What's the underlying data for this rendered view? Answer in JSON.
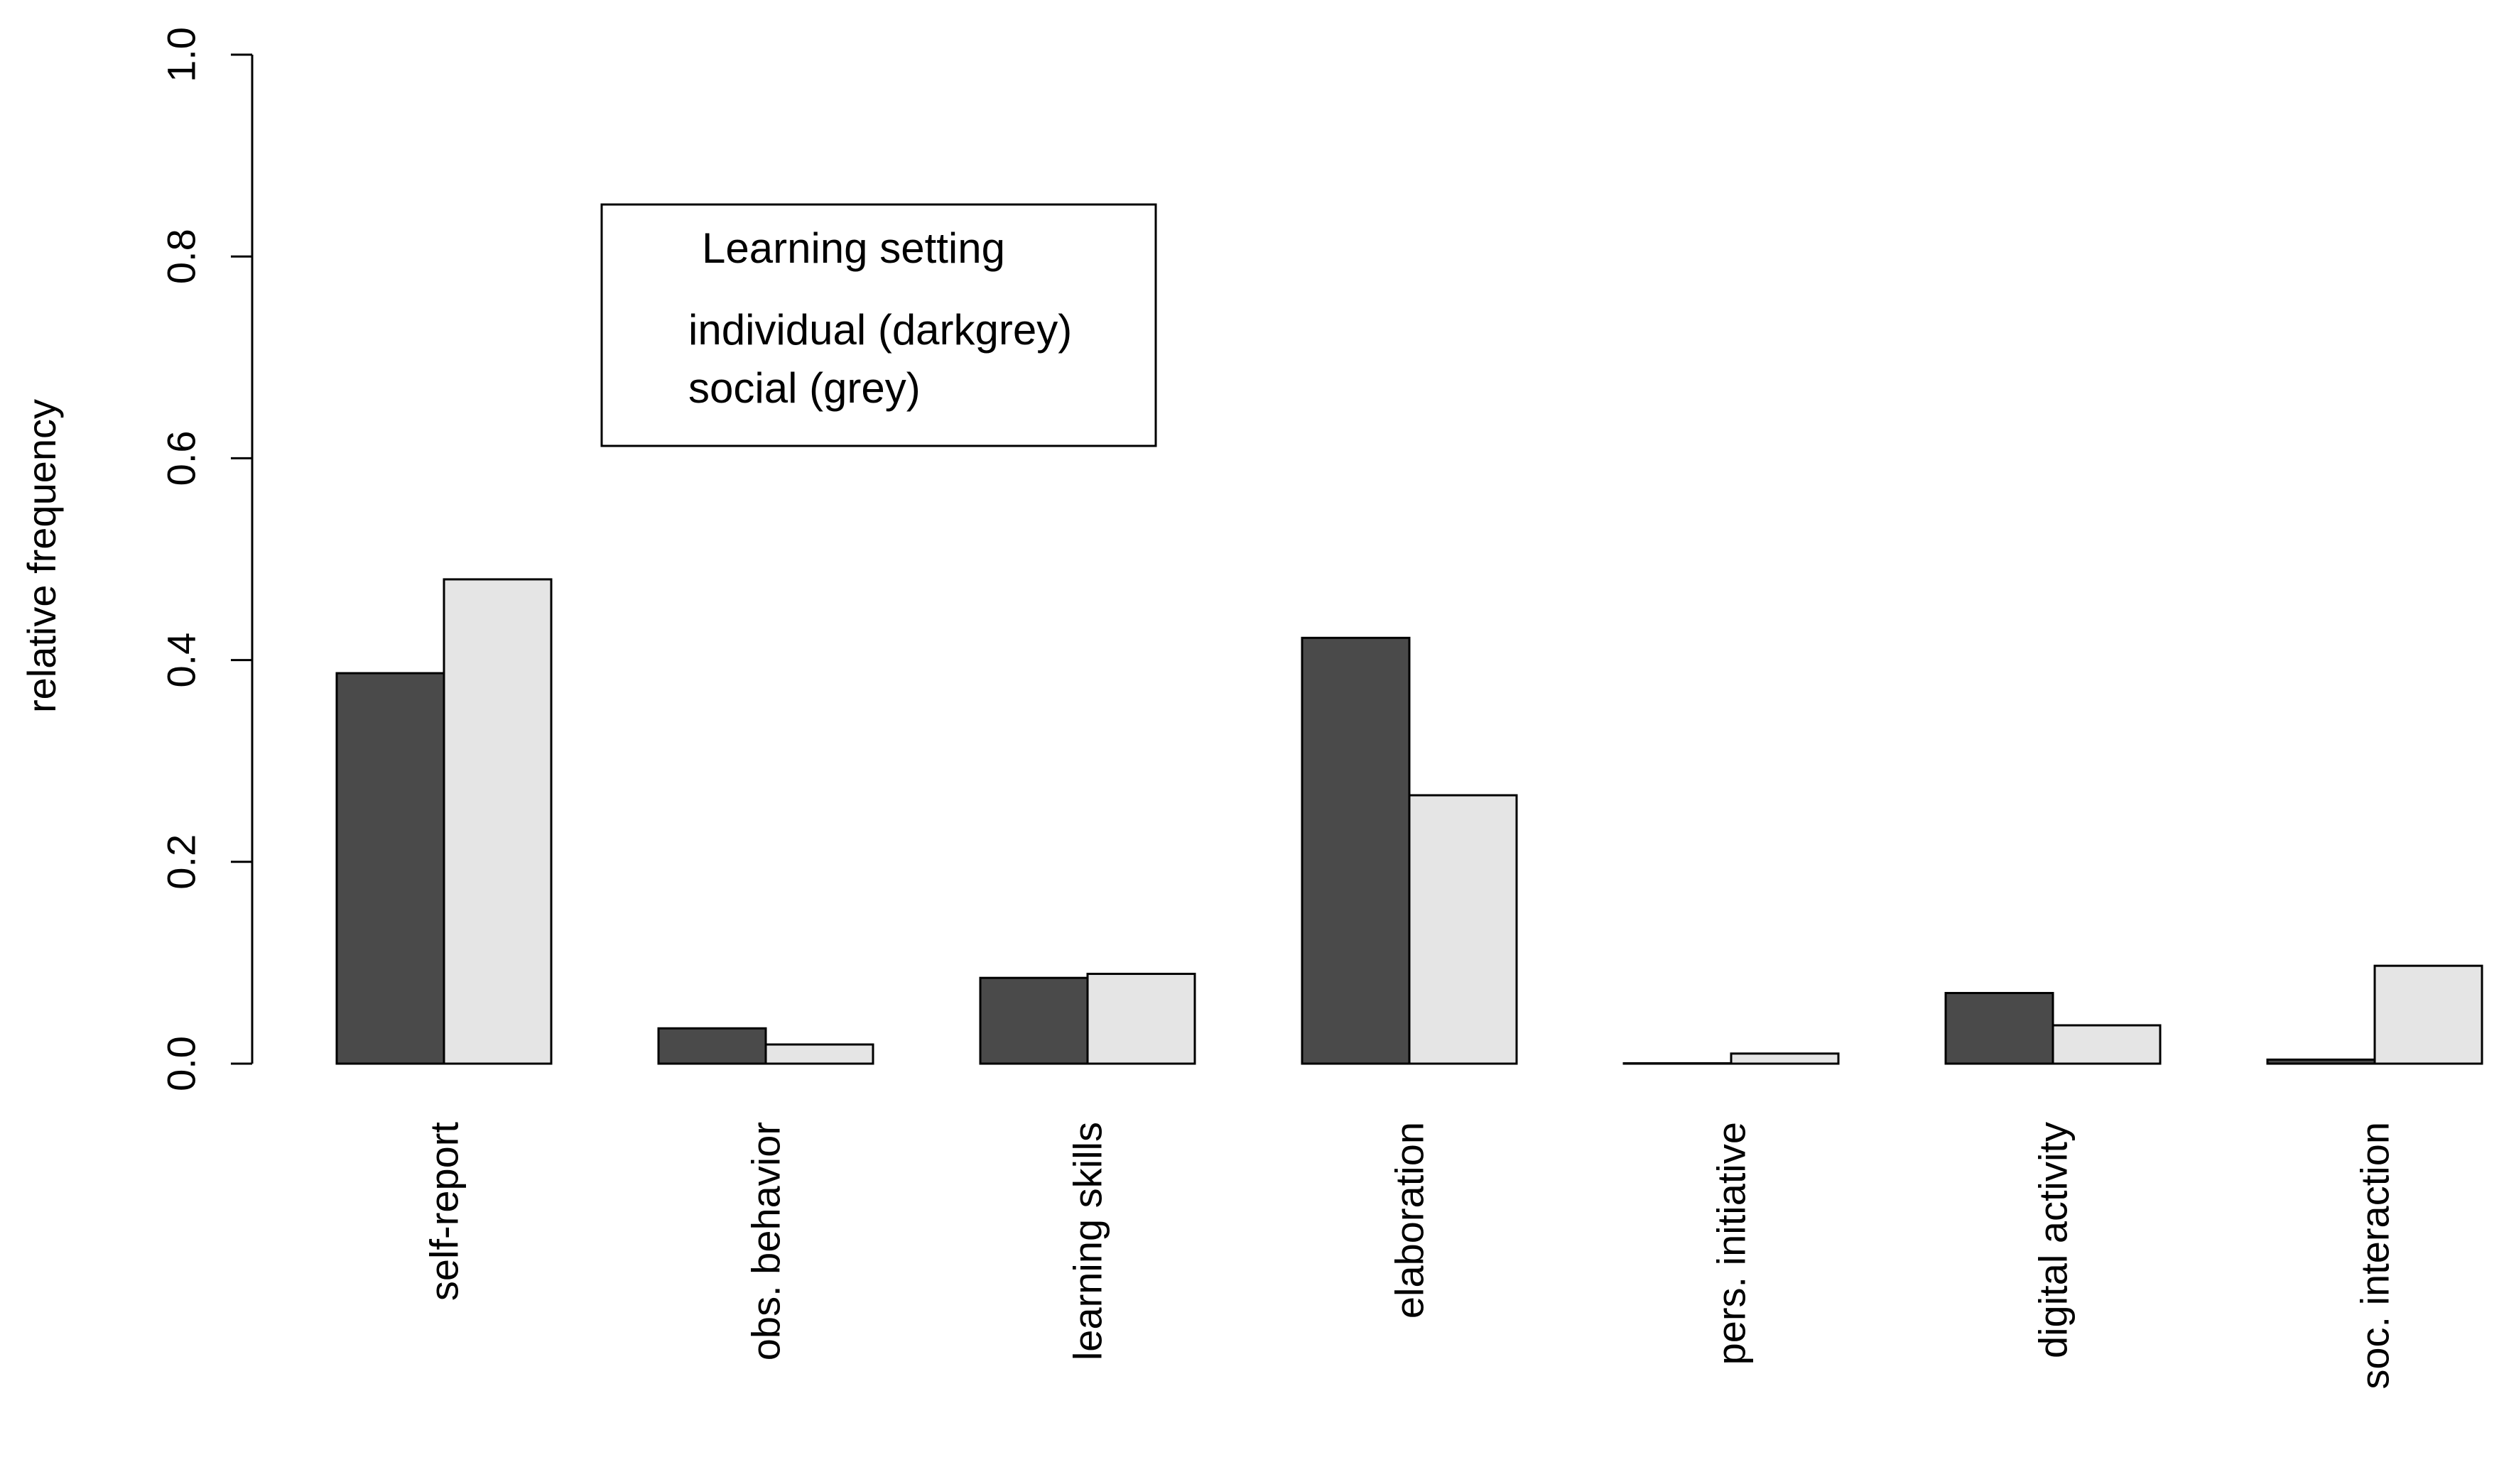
{
  "chart_data": {
    "type": "bar",
    "ylabel": "relative frequency",
    "xlabel": "",
    "ylim": [
      0,
      1.0
    ],
    "yticks": [
      "0.0",
      "0.2",
      "0.4",
      "0.6",
      "0.8",
      "1.0"
    ],
    "categories": [
      "self-report",
      "obs. behavior",
      "learning skills",
      "elaboration",
      "pers. initiative",
      "digital activity",
      "soc. interaction"
    ],
    "series": [
      {
        "name": "individual (darkgrey)",
        "values": [
          0.387,
          0.035,
          0.085,
          0.422,
          0.0,
          0.07,
          0.004
        ]
      },
      {
        "name": "social (grey)",
        "values": [
          0.48,
          0.019,
          0.089,
          0.266,
          0.01,
          0.038,
          0.097
        ]
      }
    ],
    "legend": {
      "title": "Learning setting",
      "entries": [
        "individual (darkgrey)",
        "social (grey)"
      ],
      "placement": "top-left"
    },
    "grid": false,
    "colors": {
      "individual": "#4a4a4a",
      "social": "#e5e5e5",
      "stroke": "#000000"
    }
  }
}
